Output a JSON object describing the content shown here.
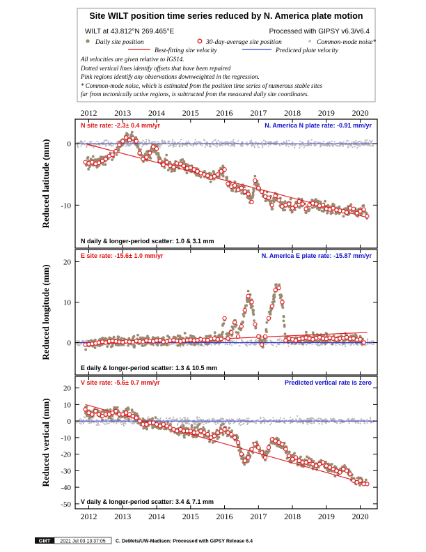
{
  "header": {
    "title": "Site WILT position time series reduced by N. America plate motion",
    "station": "WILT at 43.812°N 269.465°E",
    "processed": "Processed with GIPSY v6.3/v6.4",
    "legend": {
      "daily": "Daily site position",
      "avg30": "30-day-average site position",
      "common": "Common-mode noise*",
      "fit": "Best-fitting site velocity",
      "plate": "Predicted plate velocity"
    },
    "notes": [
      "All velocities are given relative to IGS14.",
      "Dotted vertical lines identify offsets that have been repaired",
      "Pink regions identify any observations downweighted in the regression.",
      "* Common-mode noise, which is estimated from the position time series of numerous stable sites",
      "far from tectonically active regions, is subtracted from the measured daily site coordinates."
    ]
  },
  "footer": {
    "logo": "GMT",
    "timestamp": "2021 Jul 03 13:37:05",
    "credit": "C. DeMets/UW-Madison: Processed with GIPSY Release 6.4"
  },
  "colors": {
    "daily": "#9a8a72",
    "common": "#b8b8b8",
    "fit": "#e8141a",
    "plate": "#3a3ad8",
    "rate_text": "#e01010",
    "plate_text": "#1010cc"
  },
  "chart_data": [
    {
      "type": "scatter",
      "component": "north",
      "ylabel": "Reduced latitude (mm)",
      "ylim": [
        -17,
        4
      ],
      "xlim": [
        2011.6,
        2020.5
      ],
      "yticks": [
        0,
        -10
      ],
      "xticks": [
        2012,
        2013,
        2014,
        2015,
        2016,
        2017,
        2018,
        2019,
        2020
      ],
      "site_rate": "N site rate: -2.3± 0.4 mm/yr",
      "plate_rate": "N. America N plate rate: -0.91 mm/yr",
      "scatter": "N daily & longer-period scatter: 1.0 & 3.1 mm",
      "fit_line": {
        "x": [
          2011.9,
          2020.2
        ],
        "y": [
          0,
          -12
        ]
      },
      "plate_line": {
        "y": 0
      },
      "series": [
        {
          "name": "30-day-average site position",
          "x": [
            2011.9,
            2012.0,
            2012.1,
            2012.2,
            2012.3,
            2012.4,
            2012.5,
            2012.6,
            2012.7,
            2012.8,
            2012.9,
            2013.0,
            2013.1,
            2013.2,
            2013.3,
            2013.4,
            2013.5,
            2013.6,
            2013.7,
            2013.8,
            2013.9,
            2014.0,
            2014.1,
            2014.2,
            2014.3,
            2014.4,
            2014.5,
            2014.6,
            2014.7,
            2014.8,
            2014.9,
            2015.0,
            2015.1,
            2015.2,
            2015.3,
            2015.4,
            2015.5,
            2015.6,
            2015.7,
            2015.8,
            2015.9,
            2016.0,
            2016.1,
            2016.2,
            2016.3,
            2016.4,
            2016.5,
            2016.6,
            2016.7,
            2016.8,
            2016.9,
            2017.0,
            2017.1,
            2017.2,
            2017.3,
            2017.4,
            2017.5,
            2017.6,
            2017.7,
            2017.8,
            2017.9,
            2018.0,
            2018.1,
            2018.2,
            2018.3,
            2018.4,
            2018.5,
            2018.6,
            2018.7,
            2018.8,
            2018.9,
            2019.0,
            2019.1,
            2019.2,
            2019.3,
            2019.4,
            2019.5,
            2019.6,
            2019.7,
            2019.8,
            2019.9,
            2020.0,
            2020.1,
            2020.2
          ],
          "y": [
            -3,
            -3.2,
            -3,
            -3.3,
            -3.1,
            -2.8,
            -2.5,
            -2,
            -1.8,
            -1.2,
            -0.2,
            0.4,
            1.0,
            0.6,
            0.9,
            0.4,
            -1.5,
            -2.5,
            -2.2,
            -1.5,
            -0.5,
            -0.8,
            -2.8,
            -3.4,
            -3.0,
            -3.6,
            -3.8,
            -3.2,
            -3.3,
            -3.6,
            -4.0,
            -3.9,
            -4.2,
            -4.5,
            -4.8,
            -5.0,
            -5.2,
            -5.5,
            -5.3,
            -5.0,
            -4.5,
            -4.2,
            -6.5,
            -7.0,
            -6.8,
            -7.5,
            -7.2,
            -7.8,
            -8.2,
            -9.5,
            -6.0,
            -7.2,
            -7.8,
            -8.6,
            -8.8,
            -10.0,
            -8.5,
            -9.2,
            -10.2,
            -10.0,
            -9.8,
            -10.5,
            -10.1,
            -9.4,
            -9.8,
            -10.6,
            -10.0,
            -9.7,
            -9.8,
            -10.1,
            -10.0,
            -10.6,
            -10.7,
            -10.5,
            -10.8,
            -10.9,
            -11.0,
            -11.2,
            -10.5,
            -10.6,
            -11.3,
            -11.0,
            -10.7,
            -11.8
          ]
        }
      ]
    },
    {
      "type": "scatter",
      "component": "east",
      "ylabel": "Reduced longitude (mm)",
      "ylim": [
        -8,
        23
      ],
      "xlim": [
        2011.6,
        2020.5
      ],
      "yticks": [
        20,
        10,
        0
      ],
      "xticks": [
        2012,
        2013,
        2014,
        2015,
        2016,
        2017,
        2018,
        2019,
        2020
      ],
      "site_rate": "E site rate: -15.6± 1.0 mm/yr",
      "plate_rate": "N. America E plate rate: -15.87 mm/yr",
      "scatter": "E daily & longer-period scatter: 1.3 & 10.5 mm",
      "fit_line": {
        "x": [
          2011.9,
          2020.2
        ],
        "y": [
          -0.5,
          2.5
        ]
      },
      "plate_line": {
        "y": 0
      },
      "series": [
        {
          "name": "30-day-average site position",
          "x": [
            2011.9,
            2012.0,
            2012.1,
            2012.2,
            2012.3,
            2012.4,
            2012.5,
            2012.6,
            2012.7,
            2012.8,
            2012.9,
            2013.0,
            2013.1,
            2013.2,
            2013.3,
            2013.4,
            2013.5,
            2013.6,
            2013.7,
            2013.8,
            2013.9,
            2014.0,
            2014.1,
            2014.2,
            2014.3,
            2014.4,
            2014.5,
            2014.6,
            2014.7,
            2014.8,
            2014.9,
            2015.0,
            2015.1,
            2015.2,
            2015.3,
            2015.4,
            2015.5,
            2015.6,
            2015.7,
            2015.8,
            2015.9,
            2016.0,
            2016.1,
            2016.2,
            2016.3,
            2016.4,
            2016.5,
            2016.6,
            2016.7,
            2016.8,
            2016.9,
            2017.0,
            2017.1,
            2017.2,
            2017.3,
            2017.4,
            2017.5,
            2017.6,
            2017.7,
            2017.8,
            2017.9,
            2018.0,
            2018.1,
            2018.2,
            2018.3,
            2018.4,
            2018.5,
            2018.6,
            2018.7,
            2018.8,
            2018.9,
            2019.0,
            2019.1,
            2019.2,
            2019.3,
            2019.4,
            2019.5,
            2019.6,
            2019.7,
            2019.8,
            2019.9,
            2020.0,
            2020.1
          ],
          "y": [
            -0.5,
            -0.4,
            -0.3,
            -0.2,
            0,
            0.2,
            0,
            0.3,
            0.4,
            0.3,
            0.2,
            0.1,
            0.3,
            0.2,
            0.1,
            0.4,
            0.3,
            0.2,
            0.5,
            0.4,
            0.3,
            0.5,
            0.6,
            0.2,
            0.3,
            0.5,
            0.6,
            0.4,
            0.3,
            0.5,
            0.6,
            0.7,
            0.5,
            0.6,
            0.8,
            0.7,
            0.6,
            0.9,
            1.0,
            0.8,
            0.9,
            6.0,
            1.0,
            2.5,
            5.0,
            1.5,
            4.0,
            8.0,
            11.5,
            10.0,
            4.5,
            1.5,
            -0.5,
            1.5,
            6.0,
            9.0,
            13.0,
            13.5,
            10.0,
            0.5,
            1.0,
            0.8,
            0.5,
            0.9,
            1.0,
            1.2,
            1.0,
            0.8,
            1.1,
            1.3,
            1.0,
            0.9,
            1.2,
            1.0,
            0.8,
            1.0,
            1.1,
            1.3,
            0.9,
            1.0,
            0.7,
            0.8,
            0
          ]
        }
      ]
    },
    {
      "type": "scatter",
      "component": "vertical",
      "ylabel": "Reduced vertical (mm)",
      "ylim": [
        -53,
        27
      ],
      "xlim": [
        2011.6,
        2020.5
      ],
      "yticks": [
        20,
        10,
        0,
        -10,
        -20,
        -30,
        -40,
        -50
      ],
      "xticks": [
        2012,
        2013,
        2014,
        2015,
        2016,
        2017,
        2018,
        2019,
        2020
      ],
      "site_rate": "V site rate: -5.6± 0.7 mm/yr",
      "plate_rate": "Predicted vertical rate is zero",
      "scatter": "V daily & longer-period scatter: 3.4 & 7.1 mm",
      "fit_line": {
        "x": [
          2011.9,
          2020.2
        ],
        "y": [
          10,
          -38
        ]
      },
      "plate_line": {
        "y": 0
      },
      "series": [
        {
          "name": "30-day-average site position",
          "x": [
            2011.9,
            2012.0,
            2012.1,
            2012.2,
            2012.3,
            2012.4,
            2012.5,
            2012.6,
            2012.7,
            2012.8,
            2012.9,
            2013.0,
            2013.1,
            2013.2,
            2013.3,
            2013.4,
            2013.5,
            2013.6,
            2013.7,
            2013.8,
            2013.9,
            2014.0,
            2014.1,
            2014.2,
            2014.3,
            2014.4,
            2014.5,
            2014.6,
            2014.7,
            2014.8,
            2014.9,
            2015.0,
            2015.1,
            2015.2,
            2015.3,
            2015.4,
            2015.5,
            2015.6,
            2015.7,
            2015.8,
            2015.9,
            2016.0,
            2016.1,
            2016.2,
            2016.3,
            2016.4,
            2016.5,
            2016.6,
            2016.7,
            2016.8,
            2016.9,
            2017.0,
            2017.1,
            2017.2,
            2017.3,
            2017.4,
            2017.5,
            2017.6,
            2017.7,
            2017.8,
            2017.9,
            2018.0,
            2018.1,
            2018.2,
            2018.3,
            2018.4,
            2018.5,
            2018.6,
            2018.7,
            2018.8,
            2018.9,
            2019.0,
            2019.1,
            2019.2,
            2019.3,
            2019.4,
            2019.5,
            2019.6,
            2019.7,
            2019.8,
            2019.9,
            2020.0,
            2020.1,
            2020.2
          ],
          "y": [
            7,
            5,
            4,
            6,
            4,
            3,
            4,
            4,
            5,
            6,
            4,
            4,
            5,
            4,
            3,
            2,
            0,
            -2,
            -2,
            -1,
            -1,
            -2,
            -3,
            -2,
            -3,
            -4,
            -5,
            -6,
            -5,
            -6,
            -6,
            -6,
            -7,
            -7,
            -6,
            -7,
            -8,
            -10,
            -9,
            -7,
            -6,
            -5,
            -7,
            -8,
            -10,
            -13,
            -20,
            -24,
            -22,
            -17,
            -14,
            -16,
            -19,
            -22,
            -16,
            -11,
            -12,
            -13,
            -14,
            -17,
            -21,
            -23,
            -22,
            -24,
            -25,
            -25,
            -24,
            -26,
            -27,
            -26,
            -25,
            -27,
            -28,
            -29,
            -30,
            -31,
            -29,
            -30,
            -32,
            -36,
            -37,
            -36,
            -38,
            -38
          ]
        }
      ]
    }
  ]
}
